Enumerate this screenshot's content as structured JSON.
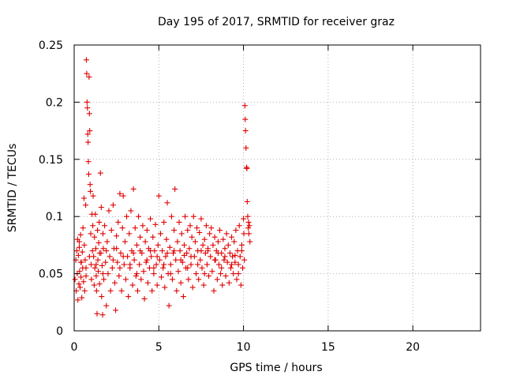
{
  "chart_data": {
    "type": "scatter",
    "title": "Day 195 of 2017, SRMTID for receiver graz",
    "xlabel": "GPS time / hours",
    "ylabel": "SRMTID / TECUs",
    "xlim": [
      0,
      24
    ],
    "ylim": [
      0,
      0.25
    ],
    "xticks": [
      0,
      5,
      10,
      15,
      20
    ],
    "yticks": [
      0,
      0.05,
      0.1,
      0.15,
      0.2,
      0.25
    ],
    "xtick_labels": [
      "0",
      "5",
      "10",
      "15",
      "20"
    ],
    "ytick_labels": [
      "0",
      "0.05",
      "0.1",
      "0.15",
      "0.2",
      "0.25"
    ],
    "grid": true,
    "marker": "+",
    "color": "#e00000",
    "series": [
      {
        "points": [
          [
            0.05,
            0.045
          ],
          [
            0.1,
            0.062
          ],
          [
            0.12,
            0.035
          ],
          [
            0.15,
            0.07
          ],
          [
            0.18,
            0.05
          ],
          [
            0.2,
            0.08
          ],
          [
            0.22,
            0.027
          ],
          [
            0.25,
            0.066
          ],
          [
            0.28,
            0.041
          ],
          [
            0.3,
            0.073
          ],
          [
            0.32,
            0.052
          ],
          [
            0.35,
            0.038
          ],
          [
            0.38,
            0.084
          ],
          [
            0.4,
            0.047
          ],
          [
            0.42,
            0.06
          ],
          [
            0.45,
            0.029
          ],
          [
            0.48,
            0.069
          ],
          [
            0.5,
            0.055
          ],
          [
            0.52,
            0.09
          ],
          [
            0.55,
            0.043
          ],
          [
            0.58,
            0.116
          ],
          [
            0.6,
            0.075
          ],
          [
            0.62,
            0.035
          ],
          [
            0.65,
            0.062
          ],
          [
            0.68,
            0.11
          ],
          [
            0.7,
            0.048
          ],
          [
            0.72,
            0.237
          ],
          [
            0.74,
            0.225
          ],
          [
            0.76,
            0.2
          ],
          [
            0.78,
            0.195
          ],
          [
            0.8,
            0.172
          ],
          [
            0.82,
            0.165
          ],
          [
            0.84,
            0.148
          ],
          [
            0.86,
            0.137
          ],
          [
            0.88,
            0.222
          ],
          [
            0.9,
            0.19
          ],
          [
            0.92,
            0.175
          ],
          [
            0.94,
            0.128
          ],
          [
            0.96,
            0.122
          ],
          [
            0.98,
            0.085
          ],
          [
            1.0,
            0.058
          ],
          [
            1.02,
            0.045
          ],
          [
            1.05,
            0.102
          ],
          [
            1.08,
            0.07
          ],
          [
            1.1,
            0.092
          ],
          [
            1.12,
            0.118
          ],
          [
            1.15,
            0.065
          ],
          [
            1.18,
            0.04
          ],
          [
            1.2,
            0.082
          ],
          [
            1.22,
            0.055
          ],
          [
            1.25,
            0.102
          ],
          [
            1.28,
            0.072
          ],
          [
            1.3,
            0.048
          ],
          [
            1.32,
            0.035
          ],
          [
            1.35,
            0.015
          ],
          [
            1.38,
            0.088
          ],
          [
            1.4,
            0.062
          ],
          [
            1.42,
            0.052
          ],
          [
            1.45,
            0.077
          ],
          [
            1.48,
            0.095
          ],
          [
            1.5,
            0.041
          ],
          [
            1.55,
            0.138
          ],
          [
            1.58,
            0.068
          ],
          [
            1.6,
            0.108
          ],
          [
            1.62,
            0.03
          ],
          [
            1.65,
            0.057
          ],
          [
            1.68,
            0.014
          ],
          [
            1.7,
            0.085
          ],
          [
            1.72,
            0.072
          ],
          [
            1.75,
            0.045
          ],
          [
            1.8,
            0.092
          ],
          [
            1.85,
            0.06
          ],
          [
            1.9,
            0.022
          ],
          [
            1.95,
            0.078
          ],
          [
            2.0,
            0.05
          ],
          [
            2.05,
            0.105
          ],
          [
            2.1,
            0.065
          ],
          [
            2.15,
            0.035
          ],
          [
            2.2,
            0.088
          ],
          [
            2.25,
            0.055
          ],
          [
            2.3,
            0.11
          ],
          [
            2.35,
            0.072
          ],
          [
            2.4,
            0.042
          ],
          [
            2.45,
            0.018
          ],
          [
            2.5,
            0.083
          ],
          [
            2.55,
            0.06
          ],
          [
            2.6,
            0.095
          ],
          [
            2.65,
            0.048
          ],
          [
            2.7,
            0.12
          ],
          [
            2.75,
            0.068
          ],
          [
            2.8,
            0.035
          ],
          [
            2.85,
            0.09
          ],
          [
            2.9,
            0.118
          ],
          [
            2.95,
            0.058
          ],
          [
            3.0,
            0.078
          ],
          [
            3.05,
            0.045
          ],
          [
            3.1,
            0.1
          ],
          [
            3.15,
            0.065
          ],
          [
            3.2,
            0.03
          ],
          [
            3.25,
            0.085
          ],
          [
            3.3,
            0.055
          ],
          [
            3.35,
            0.105
          ],
          [
            3.4,
            0.07
          ],
          [
            3.45,
            0.04
          ],
          [
            3.5,
            0.124
          ],
          [
            3.55,
            0.062
          ],
          [
            3.6,
            0.09
          ],
          [
            3.65,
            0.048
          ],
          [
            3.7,
            0.075
          ],
          [
            3.75,
            0.035
          ],
          [
            3.8,
            0.1
          ],
          [
            3.85,
            0.058
          ],
          [
            3.9,
            0.082
          ],
          [
            3.95,
            0.045
          ],
          [
            4.0,
            0.068
          ],
          [
            4.05,
            0.092
          ],
          [
            4.1,
            0.052
          ],
          [
            4.15,
            0.028
          ],
          [
            4.2,
            0.078
          ],
          [
            4.25,
            0.06
          ],
          [
            4.3,
            0.088
          ],
          [
            4.35,
            0.042
          ],
          [
            4.4,
            0.072
          ],
          [
            4.45,
            0.055
          ],
          [
            4.5,
            0.098
          ],
          [
            4.55,
            0.065
          ],
          [
            4.6,
            0.035
          ],
          [
            4.65,
            0.082
          ],
          [
            4.7,
            0.05
          ],
          [
            4.75,
            0.07
          ],
          [
            4.8,
            0.093
          ],
          [
            4.85,
            0.058
          ],
          [
            4.9,
            0.04
          ],
          [
            4.95,
            0.075
          ],
          [
            5.0,
            0.118
          ],
          [
            5.05,
            0.062
          ],
          [
            5.1,
            0.085
          ],
          [
            5.15,
            0.047
          ],
          [
            5.2,
            0.07
          ],
          [
            5.25,
            0.055
          ],
          [
            5.3,
            0.095
          ],
          [
            5.35,
            0.038
          ],
          [
            5.4,
            0.065
          ],
          [
            5.45,
            0.08
          ],
          [
            5.5,
            0.112
          ],
          [
            5.55,
            0.05
          ],
          [
            5.6,
            0.022
          ],
          [
            5.65,
            0.073
          ],
          [
            5.7,
            0.058
          ],
          [
            5.75,
            0.1
          ],
          [
            5.8,
            0.045
          ],
          [
            5.85,
            0.068
          ],
          [
            5.9,
            0.088
          ],
          [
            5.95,
            0.124
          ],
          [
            6.0,
            0.062
          ],
          [
            6.05,
            0.035
          ],
          [
            6.1,
            0.078
          ],
          [
            6.15,
            0.052
          ],
          [
            6.2,
            0.095
          ],
          [
            6.25,
            0.07
          ],
          [
            6.3,
            0.042
          ],
          [
            6.35,
            0.085
          ],
          [
            6.4,
            0.06
          ],
          [
            6.45,
            0.03
          ],
          [
            6.5,
            0.075
          ],
          [
            6.55,
            0.1
          ],
          [
            6.6,
            0.055
          ],
          [
            6.65,
            0.068
          ],
          [
            6.7,
            0.088
          ],
          [
            6.75,
            0.045
          ],
          [
            6.8,
            0.072
          ],
          [
            6.85,
            0.092
          ],
          [
            6.9,
            0.058
          ],
          [
            6.95,
            0.082
          ],
          [
            7.0,
            0.038
          ],
          [
            7.05,
            0.1
          ],
          [
            7.1,
            0.065
          ],
          [
            7.15,
            0.078
          ],
          [
            7.2,
            0.05
          ],
          [
            7.25,
            0.09
          ],
          [
            7.3,
            0.07
          ],
          [
            7.35,
            0.045
          ],
          [
            7.4,
            0.086
          ],
          [
            7.45,
            0.062
          ],
          [
            7.5,
            0.098
          ],
          [
            7.55,
            0.055
          ],
          [
            7.6,
            0.075
          ],
          [
            7.65,
            0.04
          ],
          [
            7.7,
            0.08
          ],
          [
            7.75,
            0.068
          ],
          [
            7.8,
            0.092
          ],
          [
            7.85,
            0.058
          ],
          [
            7.9,
            0.072
          ],
          [
            7.95,
            0.048
          ],
          [
            8.0,
            0.085
          ],
          [
            8.05,
            0.065
          ],
          [
            8.1,
            0.09
          ],
          [
            8.15,
            0.052
          ],
          [
            8.2,
            0.075
          ],
          [
            8.25,
            0.035
          ],
          [
            8.3,
            0.082
          ],
          [
            8.35,
            0.062
          ],
          [
            8.4,
            0.07
          ],
          [
            8.45,
            0.045
          ],
          [
            8.5,
            0.078
          ],
          [
            8.55,
            0.058
          ],
          [
            8.6,
            0.088
          ],
          [
            8.65,
            0.05
          ],
          [
            8.7,
            0.068
          ],
          [
            8.75,
            0.04
          ],
          [
            8.8,
            0.08
          ],
          [
            8.85,
            0.062
          ],
          [
            8.9,
            0.072
          ],
          [
            8.95,
            0.048
          ],
          [
            9.0,
            0.085
          ],
          [
            9.05,
            0.06
          ],
          [
            9.1,
            0.075
          ],
          [
            9.15,
            0.042
          ],
          [
            9.2,
            0.068
          ],
          [
            9.25,
            0.055
          ],
          [
            9.3,
            0.082
          ],
          [
            9.35,
            0.065
          ],
          [
            9.4,
            0.05
          ],
          [
            9.45,
            0.078
          ],
          [
            9.5,
            0.06
          ],
          [
            9.55,
            0.088
          ],
          [
            9.6,
            0.045
          ],
          [
            9.65,
            0.07
          ],
          [
            9.7,
            0.058
          ],
          [
            9.75,
            0.092
          ],
          [
            9.8,
            0.065
          ],
          [
            9.85,
            0.04
          ],
          [
            9.9,
            0.075
          ],
          [
            9.95,
            0.055
          ],
          [
            10.0,
            0.098
          ],
          [
            10.02,
            0.085
          ],
          [
            10.05,
            0.062
          ],
          [
            10.08,
            0.197
          ],
          [
            10.1,
            0.185
          ],
          [
            10.12,
            0.175
          ],
          [
            10.15,
            0.16
          ],
          [
            10.18,
            0.143
          ],
          [
            10.2,
            0.142
          ],
          [
            10.22,
            0.113
          ],
          [
            10.25,
            0.1
          ],
          [
            10.28,
            0.09
          ],
          [
            10.3,
            0.095
          ],
          [
            10.32,
            0.085
          ],
          [
            10.35,
            0.092
          ],
          [
            10.38,
            0.078
          ],
          [
            1.5,
            0.068
          ],
          [
            2.5,
            0.072
          ],
          [
            3.5,
            0.068
          ],
          [
            4.5,
            0.07
          ],
          [
            5.5,
            0.068
          ],
          [
            6.5,
            0.066
          ],
          [
            7.5,
            0.07
          ],
          [
            8.5,
            0.068
          ],
          [
            9.5,
            0.066
          ],
          [
            0.4,
            0.06
          ],
          [
            0.9,
            0.065
          ],
          [
            1.9,
            0.07
          ],
          [
            2.9,
            0.065
          ],
          [
            3.9,
            0.07
          ],
          [
            4.9,
            0.065
          ],
          [
            5.9,
            0.07
          ],
          [
            6.9,
            0.065
          ],
          [
            7.9,
            0.07
          ],
          [
            8.9,
            0.065
          ],
          [
            9.9,
            0.07
          ],
          [
            1.3,
            0.058
          ],
          [
            2.3,
            0.062
          ],
          [
            3.3,
            0.058
          ],
          [
            4.3,
            0.062
          ],
          [
            5.3,
            0.058
          ],
          [
            6.3,
            0.062
          ],
          [
            7.3,
            0.058
          ],
          [
            8.3,
            0.062
          ],
          [
            9.3,
            0.058
          ],
          [
            0.7,
            0.055
          ],
          [
            1.7,
            0.05
          ],
          [
            2.7,
            0.055
          ],
          [
            3.7,
            0.05
          ],
          [
            4.7,
            0.055
          ],
          [
            5.7,
            0.05
          ],
          [
            6.7,
            0.055
          ],
          [
            7.7,
            0.05
          ],
          [
            8.7,
            0.055
          ],
          [
            9.7,
            0.05
          ],
          [
            0.3,
            0.078
          ]
        ]
      }
    ]
  }
}
